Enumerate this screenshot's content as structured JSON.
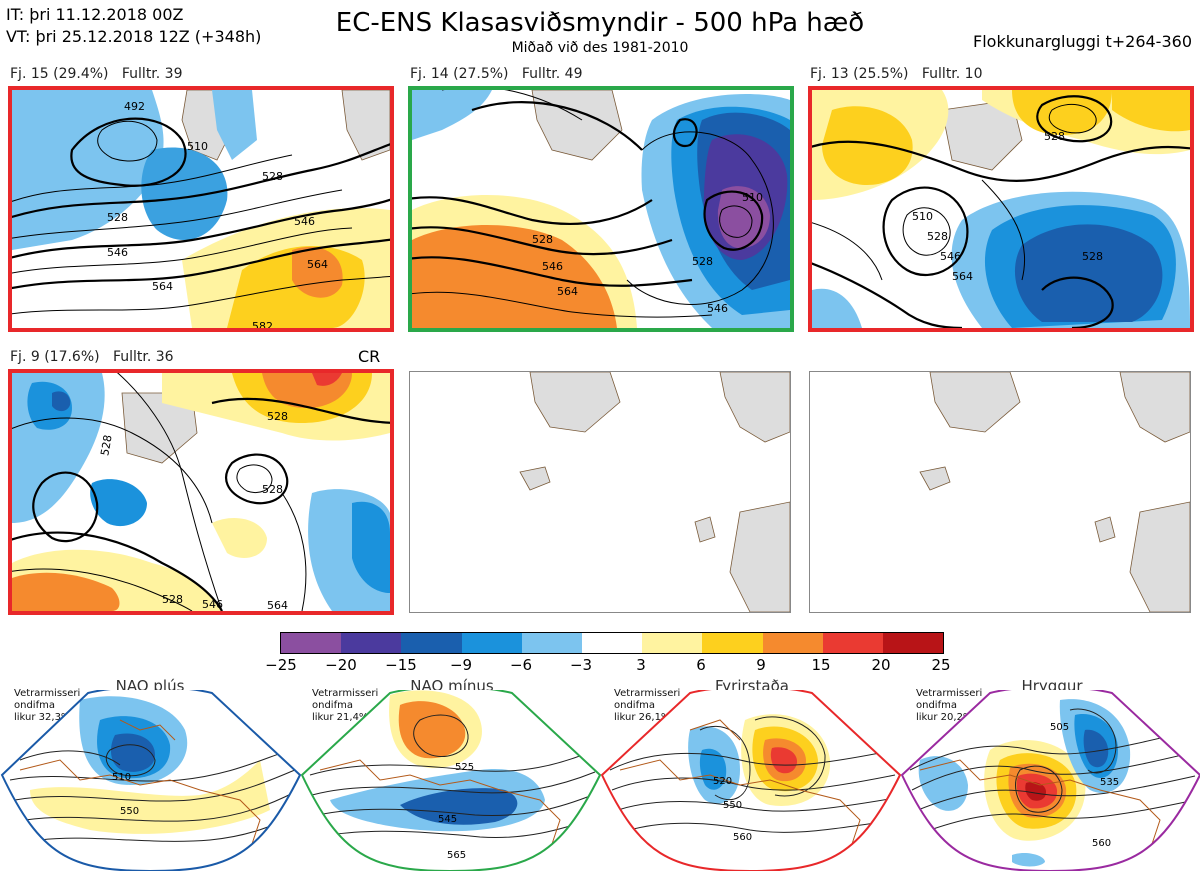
{
  "header": {
    "it_line": "IT: þri 11.12.2018 00Z",
    "vt_line": "VT: þri 25.12.2018 12Z  (+348h)",
    "title": "EC-ENS Klasasviðsmyndir - 500 hPa hæð",
    "subtitle": "Miðað við des 1981-2010",
    "window": "Flokkunargluggi t+264-360"
  },
  "clusters": [
    {
      "label": "Fj. 15 (29.4%)",
      "rep": "Fulltr. 39",
      "frame_color": "#e8282a",
      "contours": [
        "492",
        "510",
        "528",
        "546",
        "564",
        "582"
      ]
    },
    {
      "label": "Fj. 14 (27.5%)",
      "rep": "Fulltr. 49",
      "frame_color": "#2aa84a",
      "contours": [
        "510",
        "528",
        "528",
        "546",
        "546",
        "564"
      ]
    },
    {
      "label": "Fj. 13 (25.5%)",
      "rep": "Fulltr. 10",
      "frame_color": "#e8282a",
      "contours": [
        "528",
        "510",
        "528",
        "546",
        "564",
        "528"
      ]
    },
    {
      "label": "Fj. 9 (17.6%)",
      "rep": "Fulltr. 36",
      "frame_color": "#e8282a",
      "contours": [
        "528",
        "528",
        "528",
        "546",
        "564",
        "528"
      ]
    }
  ],
  "cr_label": "CR",
  "colorbar": {
    "colors": [
      "#8b4fa0",
      "#4b3a9e",
      "#1a5fae",
      "#1b92dc",
      "#7cc4ef",
      "#ffffff",
      "#fff3a0",
      "#fdd01e",
      "#f58a2e",
      "#ea3a32",
      "#b81417"
    ],
    "ticks": [
      "−25",
      "−20",
      "−15",
      "−9",
      "−6",
      "−3",
      "3",
      "6",
      "9",
      "15",
      "20",
      "25"
    ]
  },
  "regimes": [
    {
      "title": "NAO plús",
      "info": [
        "Vetrarmisseri",
        "ondifma",
        "likur 32,3%"
      ],
      "color": "#1a5aa8",
      "contours": [
        "510",
        "550"
      ]
    },
    {
      "title": "NAO mínus",
      "info": [
        "Vetrarmisseri",
        "ondifma",
        "likur 21,4%"
      ],
      "color": "#2aa84a",
      "contours": [
        "525",
        "545",
        "565"
      ]
    },
    {
      "title": "Fyrirstaða",
      "info": [
        "Vetrarmisseri",
        "ondifma",
        "likur 26,1%"
      ],
      "color": "#e8282a",
      "contours": [
        "520",
        "550",
        "560"
      ]
    },
    {
      "title": "Hryggur",
      "info": [
        "Vetrarmisseri",
        "ondifma",
        "likur 20,2%"
      ],
      "color": "#ee80e8",
      "contours": [
        "505",
        "535",
        "560"
      ]
    }
  ]
}
